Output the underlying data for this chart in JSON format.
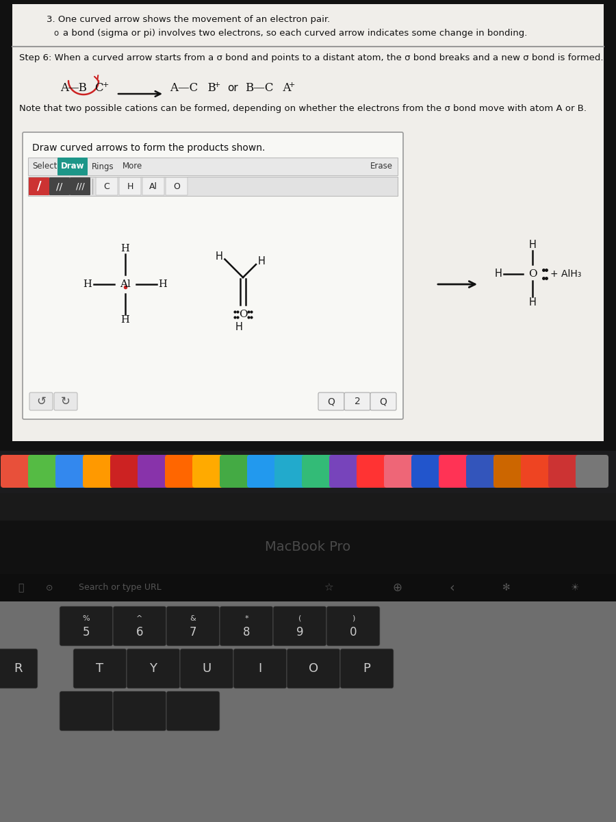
{
  "bg_top": "#c8c8c8",
  "screen_bg": "#f0efec",
  "bezel_color": "#111111",
  "dock_bg": "#1a1a1a",
  "keyboard_bg": "#6e6e6e",
  "key_color": "#1c1c1c",
  "key_text": "#cccccc",
  "macbook_text": "#454545",
  "touchbar_bg": "#111111",
  "touchbar_text": "#666666",
  "title_text": "3. One curved arrow shows the movement of an electron pair.",
  "bullet_text": "a bond (sigma or pi) involves two electrons, so each curved arrow indicates some change in bonding.",
  "step6_text": "Step 6: When a curved arrow starts from a σ bond and points to a distant atom, the σ bond breaks and a new σ bond is formed.",
  "note_text": "Note that two possible cations can be formed, depending on whether the electrons from the σ bond move with atom A or B.",
  "draw_instruction": "Draw curved arrows to form the products shown.",
  "atom_buttons": [
    "C",
    "H",
    "Al",
    "O"
  ],
  "macbook_label": "MacBook Pro",
  "search_placeholder": "Search or type URL",
  "num_row": [
    "%\n5",
    "^\n6",
    "&\n7",
    "*\n8",
    "(\n9",
    ")\n0"
  ],
  "letter_row": [
    "T",
    "Y",
    "U",
    "I",
    "O",
    "P"
  ],
  "dock_colors": [
    "#e8503a",
    "#55bb44",
    "#3388ee",
    "#ff9900",
    "#cc2222",
    "#8833aa",
    "#ff6600",
    "#ffaa00",
    "#44aa44",
    "#2299ee",
    "#22aacc",
    "#33bb77",
    "#7744bb",
    "#ff3333",
    "#ee6677",
    "#2255cc",
    "#ff3355",
    "#3355bb",
    "#cc6600",
    "#ee4422",
    "#cc3333",
    "#777777"
  ]
}
